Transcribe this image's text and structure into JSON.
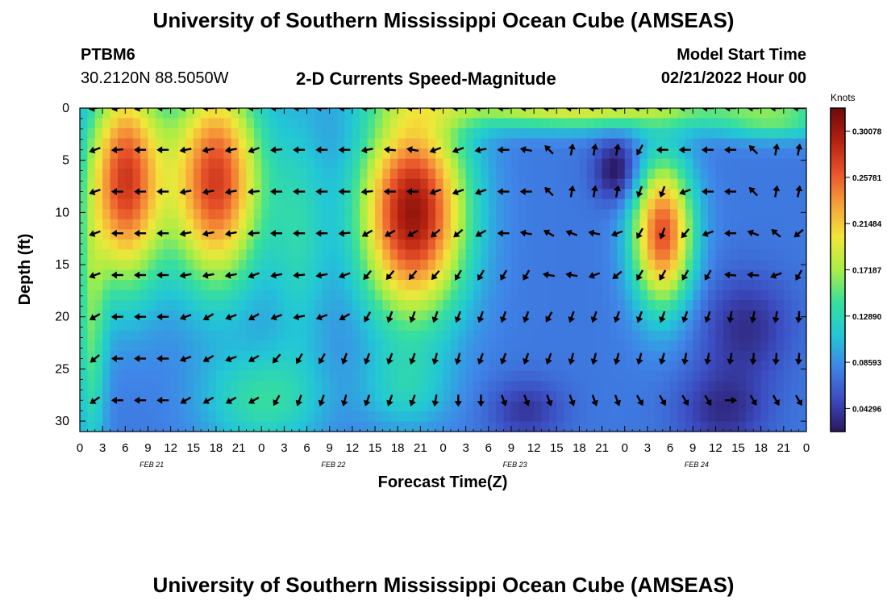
{
  "header": {
    "title": "University of Southern Mississippi Ocean Cube (AMSEAS)",
    "station": "PTBM6",
    "coords": "30.2120N  88.5050W",
    "subtitle": "2-D Currents Speed-Magnitude",
    "model_start_label": "Model Start Time",
    "model_start_value": "02/21/2022 Hour 00"
  },
  "footer": {
    "title": "University of Southern Mississippi Ocean Cube (AMSEAS)"
  },
  "colorbar": {
    "unit": "Knots",
    "range": [
      0.0215,
      0.3222
    ],
    "ticks": [
      {
        "value": 0.30078,
        "label": "0.30078"
      },
      {
        "value": 0.25781,
        "label": "0.25781"
      },
      {
        "value": 0.21484,
        "label": "0.21484"
      },
      {
        "value": 0.17187,
        "label": "0.17187"
      },
      {
        "value": 0.1289,
        "label": "0.12890"
      },
      {
        "value": 0.08593,
        "label": "0.08593"
      },
      {
        "value": 0.04296,
        "label": "0.04296"
      }
    ],
    "colors": [
      "#2b1660",
      "#3b4cc0",
      "#3f86e8",
      "#22c7d6",
      "#38e09a",
      "#a8ee45",
      "#f2e63a",
      "#f7a23b",
      "#e8532a",
      "#b3200f",
      "#6e0a0a"
    ]
  },
  "chart_data": {
    "type": "heatmap",
    "title": "2-D Currents Speed-Magnitude",
    "xlabel": "Forecast Time(Z)",
    "ylabel": "Depth (ft)",
    "xlim": [
      0,
      96
    ],
    "ylim": [
      0,
      31
    ],
    "x_ticks": [
      {
        "value": 0,
        "label": "0"
      },
      {
        "value": 3,
        "label": "3"
      },
      {
        "value": 6,
        "label": "6"
      },
      {
        "value": 9,
        "label": "9"
      },
      {
        "value": 12,
        "label": "12"
      },
      {
        "value": 15,
        "label": "15"
      },
      {
        "value": 18,
        "label": "18"
      },
      {
        "value": 21,
        "label": "21"
      },
      {
        "value": 24,
        "label": "0"
      },
      {
        "value": 27,
        "label": "3"
      },
      {
        "value": 30,
        "label": "6"
      },
      {
        "value": 33,
        "label": "9"
      },
      {
        "value": 36,
        "label": "12"
      },
      {
        "value": 39,
        "label": "15"
      },
      {
        "value": 42,
        "label": "18"
      },
      {
        "value": 45,
        "label": "21"
      },
      {
        "value": 48,
        "label": "0"
      },
      {
        "value": 51,
        "label": "3"
      },
      {
        "value": 54,
        "label": "6"
      },
      {
        "value": 57,
        "label": "9"
      },
      {
        "value": 60,
        "label": "12"
      },
      {
        "value": 63,
        "label": "15"
      },
      {
        "value": 66,
        "label": "18"
      },
      {
        "value": 69,
        "label": "21"
      },
      {
        "value": 72,
        "label": "0"
      },
      {
        "value": 75,
        "label": "3"
      },
      {
        "value": 78,
        "label": "6"
      },
      {
        "value": 81,
        "label": "9"
      },
      {
        "value": 84,
        "label": "12"
      },
      {
        "value": 87,
        "label": "15"
      },
      {
        "value": 90,
        "label": "18"
      },
      {
        "value": 93,
        "label": "21"
      },
      {
        "value": 96,
        "label": "0"
      }
    ],
    "y_ticks": [
      {
        "value": 0,
        "label": "0"
      },
      {
        "value": 5,
        "label": "5"
      },
      {
        "value": 10,
        "label": "10"
      },
      {
        "value": 15,
        "label": "15"
      },
      {
        "value": 20,
        "label": "20"
      },
      {
        "value": 25,
        "label": "25"
      },
      {
        "value": 30,
        "label": "30"
      }
    ],
    "date_labels": [
      {
        "value": 9.5,
        "label": "FEB 21"
      },
      {
        "value": 33.5,
        "label": "FEB 22"
      },
      {
        "value": 57.5,
        "label": "FEB 23"
      },
      {
        "value": 81.5,
        "label": "FEB 24"
      }
    ],
    "arrow_times": [
      2,
      5,
      8,
      11,
      14,
      17,
      20,
      23,
      26,
      29,
      32,
      35,
      38,
      41,
      44,
      47,
      50,
      53,
      56,
      59,
      62,
      65,
      68,
      71,
      74,
      77,
      80,
      83,
      86,
      89,
      92,
      95
    ],
    "arrow_depths": [
      0,
      4,
      8,
      12,
      16,
      20,
      24,
      28
    ],
    "arrow_angles_deg": [
      [
        190,
        190,
        190,
        180,
        185,
        180,
        180,
        180,
        180,
        180,
        180,
        180,
        180,
        180,
        180,
        180,
        180,
        180,
        180,
        180,
        180,
        180,
        180,
        180,
        180,
        180,
        180,
        180,
        180,
        180,
        180,
        180
      ],
      [
        200,
        185,
        180,
        180,
        190,
        190,
        190,
        200,
        185,
        180,
        180,
        180,
        190,
        175,
        170,
        200,
        200,
        190,
        180,
        170,
        135,
        80,
        80,
        80,
        240,
        180,
        180,
        180,
        180,
        135,
        80,
        80
      ],
      [
        200,
        180,
        180,
        180,
        190,
        190,
        190,
        185,
        180,
        180,
        180,
        180,
        185,
        180,
        180,
        200,
        200,
        200,
        180,
        180,
        135,
        80,
        80,
        80,
        250,
        250,
        200,
        180,
        180,
        135,
        80,
        80
      ],
      [
        200,
        180,
        180,
        180,
        190,
        190,
        190,
        185,
        180,
        180,
        180,
        185,
        210,
        210,
        210,
        220,
        220,
        210,
        180,
        170,
        150,
        160,
        170,
        200,
        240,
        250,
        230,
        200,
        180,
        160,
        140,
        220
      ],
      [
        200,
        180,
        180,
        180,
        190,
        190,
        190,
        200,
        190,
        185,
        190,
        200,
        230,
        230,
        230,
        230,
        240,
        240,
        240,
        240,
        170,
        170,
        200,
        220,
        240,
        240,
        240,
        240,
        175,
        175,
        200,
        240
      ],
      [
        210,
        180,
        180,
        180,
        200,
        210,
        200,
        210,
        200,
        190,
        200,
        210,
        240,
        250,
        250,
        250,
        250,
        250,
        250,
        250,
        240,
        250,
        250,
        250,
        250,
        250,
        250,
        250,
        260,
        260,
        260,
        265
      ],
      [
        220,
        180,
        180,
        180,
        200,
        210,
        200,
        210,
        230,
        240,
        240,
        250,
        250,
        250,
        250,
        255,
        255,
        250,
        250,
        250,
        250,
        255,
        255,
        255,
        255,
        255,
        260,
        260,
        260,
        265,
        265,
        265
      ],
      [
        215,
        180,
        180,
        180,
        210,
        210,
        210,
        210,
        240,
        250,
        250,
        255,
        250,
        250,
        250,
        260,
        270,
        270,
        290,
        290,
        290,
        290,
        290,
        290,
        300,
        300,
        300,
        300,
        360,
        300,
        300,
        300
      ]
    ],
    "speed_field": {
      "rows": 32,
      "cols": 96,
      "note": "Cell values in knots estimated from colours, computed in script as a smooth field"
    },
    "colorbar_ticks": [
      0.04296,
      0.08593,
      0.1289,
      0.17187,
      0.21484,
      0.25781,
      0.30078
    ],
    "unit": "Knots"
  }
}
